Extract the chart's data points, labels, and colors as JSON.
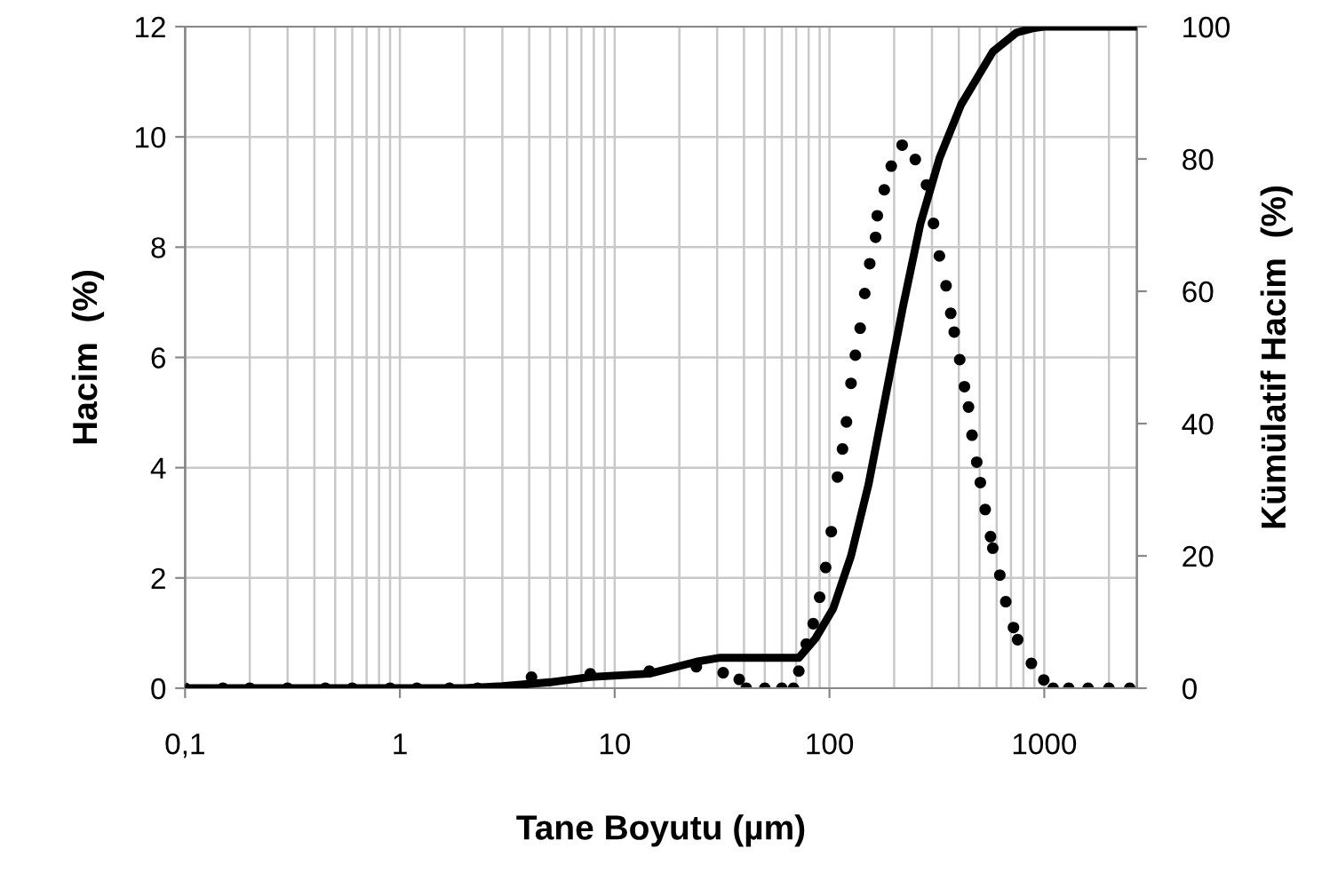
{
  "chart_data": {
    "type": "line",
    "xlabel": "Tane Boyutu (µm)",
    "ylabel": "Hacim  (%)",
    "y2label": "Kümülatif Hacim  (%)",
    "log": "x",
    "grid": true,
    "legend": false,
    "xlim": [
      0.1,
      2700
    ],
    "xticks": [
      {
        "value": 0.1,
        "label": "0,1"
      },
      1,
      10,
      100,
      1000
    ],
    "ylim": [
      0,
      12
    ],
    "yticks": [
      0,
      2,
      4,
      6,
      8,
      10,
      12
    ],
    "y2lim": [
      0,
      100
    ],
    "y2ticks": [
      0,
      20,
      40,
      60,
      80,
      100
    ],
    "series": [
      {
        "type": "scatter",
        "marker": "circle",
        "color": "#000000",
        "x": [
          0.1,
          0.15,
          0.2,
          0.3,
          0.45,
          0.6,
          0.9,
          1.2,
          1.7,
          2.3,
          4.1,
          7.7,
          14.5,
          24,
          32,
          38,
          41,
          50,
          60,
          68,
          72,
          78,
          84,
          90,
          96,
          102,
          109,
          115,
          120,
          126,
          132,
          139,
          146,
          154,
          164,
          167,
          180,
          194,
          218,
          251,
          283,
          305,
          325,
          349,
          367,
          381,
          404,
          425,
          444,
          461,
          485,
          504,
          531,
          562,
          576,
          621,
          662,
          719,
          752,
          871,
          995,
          1100,
          1300,
          1600,
          2000,
          2500
        ],
        "values": [
          0,
          0,
          0,
          0,
          0,
          0,
          0,
          0,
          0,
          0,
          0.2,
          0.26,
          0.31,
          0.39,
          0.28,
          0.16,
          0,
          0,
          0,
          0,
          0.31,
          0.8,
          1.17,
          1.65,
          2.19,
          2.84,
          3.83,
          4.34,
          4.83,
          5.53,
          6.04,
          6.53,
          7.16,
          7.7,
          8.18,
          8.57,
          9.04,
          9.47,
          9.85,
          9.59,
          9.13,
          8.43,
          7.84,
          7.3,
          6.8,
          6.46,
          5.96,
          5.47,
          5.1,
          4.59,
          4.1,
          3.73,
          3.24,
          2.75,
          2.54,
          2.05,
          1.57,
          1.1,
          0.88,
          0.45,
          0.15,
          0,
          0,
          0,
          0,
          0
        ]
      },
      {
        "axis": "y2",
        "marker": "none",
        "line_style": "solid",
        "color": "#000000",
        "x": [
          0.1,
          2,
          3,
          5,
          7.7,
          14.5,
          24,
          31,
          72,
          86,
          104,
          126,
          152,
          183,
          220,
          265,
          325,
          410,
          476,
          576,
          742,
          898,
          1000,
          2700
        ],
        "values": [
          0,
          0,
          0.3,
          0.9,
          1.7,
          2.2,
          4,
          4.6,
          4.6,
          7.5,
          12,
          20,
          30.8,
          44.3,
          57.7,
          70.2,
          80.1,
          88.2,
          91.7,
          96.2,
          99.1,
          99.8,
          100,
          100
        ]
      }
    ]
  }
}
